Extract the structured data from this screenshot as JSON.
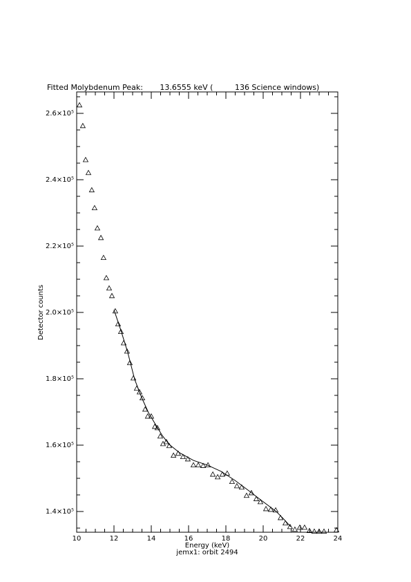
{
  "chart_data": {
    "type": "scatter",
    "title": "Fitted Molybdenum Peak:       13.6555 keV (         136 Science windows)",
    "x_label": "Energy (keV)",
    "subtitle": "jemx1: orbit 2494",
    "y_label": "Detector counts",
    "xlim": [
      10,
      24
    ],
    "xticks": [
      10,
      12,
      14,
      16,
      18,
      20,
      22,
      24
    ],
    "ylim": [
      133750,
      266460
    ],
    "yticks": [
      {
        "value": 140000,
        "label": "1.4×10⁵"
      },
      {
        "value": 160000,
        "label": "1.6×10⁵"
      },
      {
        "value": 180000,
        "label": "1.8×10⁵"
      },
      {
        "value": 200000,
        "label": "2.0×10⁵"
      },
      {
        "value": 220000,
        "label": "2.2×10⁵"
      },
      {
        "value": 240000,
        "label": "2.4×10⁵"
      },
      {
        "value": 260000,
        "label": "2.6×10⁵"
      }
    ],
    "minor_ticks_per_major": 4,
    "color": "#000000",
    "series": [
      {
        "marker": "triangle",
        "x": [
          10.15,
          10.33,
          10.48,
          10.63,
          10.81,
          10.96,
          11.11,
          11.3,
          11.44,
          11.59,
          11.74,
          11.89,
          12.07,
          12.22,
          12.37,
          12.52,
          12.7,
          12.85,
          13.04,
          13.22,
          13.37,
          13.52,
          13.67,
          13.81,
          14.0,
          14.19,
          14.33,
          14.48,
          14.63,
          14.81,
          14.96,
          15.19,
          15.44,
          15.7,
          15.96,
          16.26,
          16.52,
          16.78,
          17.04,
          17.3,
          17.56,
          17.81,
          18.07,
          18.33,
          18.59,
          18.85,
          19.11,
          19.37,
          19.63,
          19.85,
          20.15,
          20.41,
          20.67,
          20.93,
          21.19,
          21.44,
          21.7,
          21.96,
          22.22,
          22.48,
          22.74,
          23.0,
          23.26,
          23.93
        ],
        "values": [
          262500,
          256250,
          246000,
          242100,
          236900,
          231500,
          225400,
          222500,
          216500,
          210400,
          207300,
          205000,
          200400,
          196500,
          194200,
          190800,
          188300,
          184800,
          180200,
          177100,
          176000,
          174200,
          170800,
          168700,
          168700,
          165600,
          165200,
          162700,
          160400,
          161000,
          159800,
          156900,
          157500,
          156500,
          155800,
          154000,
          154000,
          153800,
          154000,
          151200,
          150400,
          151200,
          151500,
          149000,
          147700,
          147300,
          144800,
          145600,
          143800,
          142900,
          140800,
          140600,
          140400,
          138100,
          136500,
          135400,
          134600,
          135200,
          135200,
          134200,
          134000,
          134000,
          134000,
          134400
        ]
      },
      {
        "marker": "line",
        "x": [
          12.0,
          12.37,
          12.74,
          13.11,
          13.48,
          13.85,
          14.22,
          14.59,
          14.96,
          15.52,
          16.26,
          17.0,
          17.74,
          18.48,
          19.22,
          19.96,
          20.7,
          21.07,
          21.48
        ],
        "values": [
          200800,
          194600,
          187900,
          179800,
          174400,
          169800,
          166300,
          162900,
          160200,
          157700,
          155400,
          154000,
          152100,
          149400,
          146300,
          143100,
          140000,
          137900,
          135400
        ]
      }
    ]
  }
}
